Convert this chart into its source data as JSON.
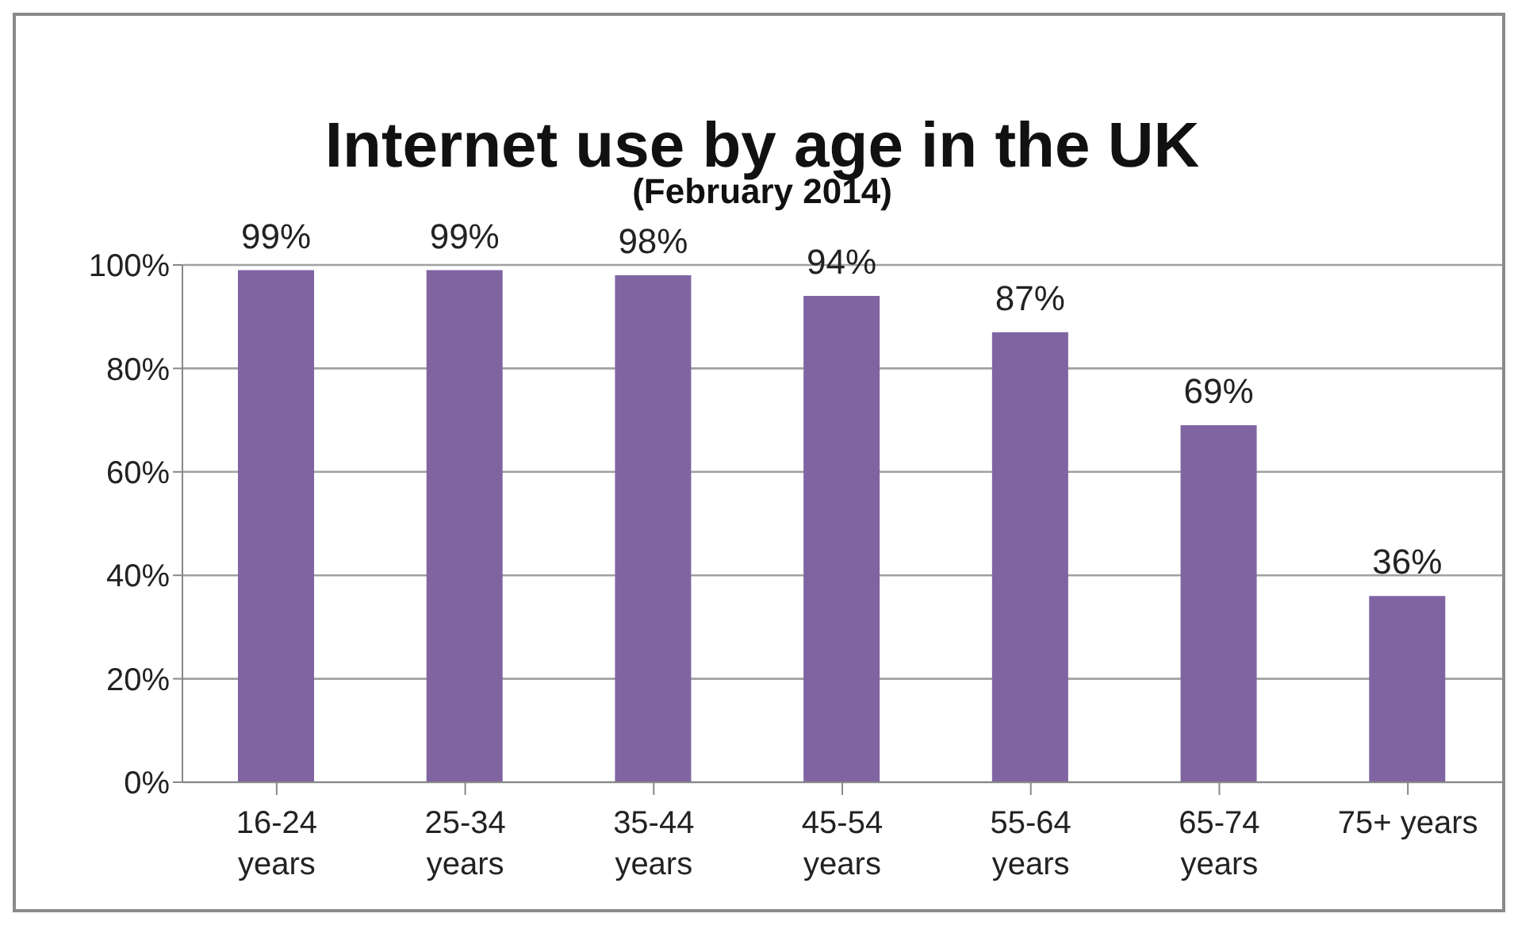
{
  "chart_data": {
    "type": "bar",
    "title": "Internet use by age in the UK",
    "subtitle": "(February 2014)",
    "categories": [
      "16-24\nyears",
      "25-34\nyears",
      "35-44\nyears",
      "45-54\nyears",
      "55-64\nyears",
      "65-74\nyears",
      "75+ years"
    ],
    "values": [
      99,
      99,
      98,
      94,
      87,
      69,
      36
    ],
    "value_labels": [
      "99%",
      "99%",
      "98%",
      "94%",
      "87%",
      "69%",
      "36%"
    ],
    "color": "#8064a2",
    "ylim": [
      0,
      100
    ],
    "yticks": [
      {
        "value": 0,
        "label": "0%"
      },
      {
        "value": 20,
        "label": "20%"
      },
      {
        "value": 40,
        "label": "40%"
      },
      {
        "value": 60,
        "label": "60%"
      },
      {
        "value": 80,
        "label": "80%"
      },
      {
        "value": 100,
        "label": "100%"
      }
    ],
    "grid": "y",
    "legend": false
  }
}
